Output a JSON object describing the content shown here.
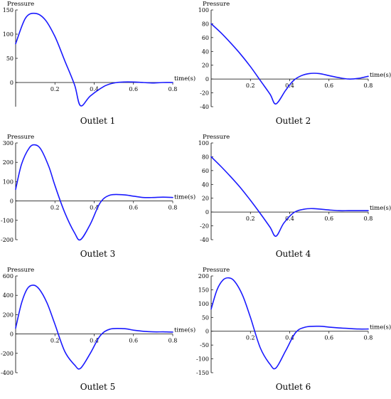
{
  "chart_data": [
    {
      "type": "line",
      "caption": "Outlet 1",
      "ylabel": "Pressure",
      "xlabel": "time(s)",
      "xlim": [
        0,
        0.8
      ],
      "ylim": [
        -50,
        150
      ],
      "xticks": [
        0.2,
        0.4,
        0.6,
        0.8
      ],
      "yticks": [
        0,
        50,
        100,
        150
      ],
      "x": [
        0,
        0.05,
        0.1,
        0.15,
        0.2,
        0.25,
        0.3,
        0.33,
        0.38,
        0.45,
        0.5,
        0.55,
        0.6,
        0.65,
        0.7,
        0.75,
        0.8
      ],
      "y": [
        80,
        133,
        143,
        130,
        95,
        45,
        -5,
        -48,
        -28,
        -8,
        -1,
        1,
        1,
        0,
        -1,
        0,
        0
      ]
    },
    {
      "type": "line",
      "caption": "Outlet 2",
      "ylabel": "Pressure",
      "xlabel": "time(s)",
      "xlim": [
        0,
        0.8
      ],
      "ylim": [
        -40,
        100
      ],
      "xticks": [
        0.2,
        0.4,
        0.6,
        0.8
      ],
      "yticks": [
        -40,
        -20,
        0,
        20,
        40,
        60,
        80,
        100
      ],
      "x": [
        0,
        0.05,
        0.1,
        0.15,
        0.2,
        0.25,
        0.3,
        0.33,
        0.38,
        0.42,
        0.46,
        0.5,
        0.55,
        0.6,
        0.65,
        0.7,
        0.75,
        0.8
      ],
      "y": [
        80,
        67,
        52,
        36,
        18,
        -2,
        -22,
        -36,
        -16,
        -2,
        5,
        8,
        8,
        5,
        2,
        0,
        1,
        4
      ]
    },
    {
      "type": "line",
      "caption": "Outlet 3",
      "ylabel": "Pressure",
      "xlabel": "time(s)",
      "xlim": [
        0,
        0.8
      ],
      "ylim": [
        -200,
        300
      ],
      "xticks": [
        0.2,
        0.4,
        0.6,
        0.8
      ],
      "yticks": [
        -200,
        -100,
        0,
        100,
        200,
        300
      ],
      "x": [
        0,
        0.03,
        0.07,
        0.1,
        0.13,
        0.17,
        0.2,
        0.25,
        0.3,
        0.33,
        0.38,
        0.43,
        0.48,
        0.55,
        0.6,
        0.65,
        0.7,
        0.75,
        0.8
      ],
      "y": [
        60,
        190,
        275,
        290,
        265,
        175,
        80,
        -60,
        -165,
        -200,
        -120,
        -10,
        30,
        32,
        25,
        18,
        18,
        20,
        18
      ]
    },
    {
      "type": "line",
      "caption": "Outlet 4",
      "ylabel": "Pressure",
      "xlabel": "time(s)",
      "xlim": [
        0,
        0.8
      ],
      "ylim": [
        -40,
        100
      ],
      "xticks": [
        0.2,
        0.4,
        0.6,
        0.8
      ],
      "yticks": [
        -40,
        -20,
        0,
        20,
        40,
        60,
        80,
        100
      ],
      "x": [
        0,
        0.05,
        0.1,
        0.15,
        0.2,
        0.25,
        0.3,
        0.33,
        0.37,
        0.42,
        0.47,
        0.52,
        0.6,
        0.65,
        0.7,
        0.75,
        0.8
      ],
      "y": [
        80,
        66,
        51,
        35,
        17,
        -2,
        -22,
        -35,
        -16,
        -1,
        4,
        5,
        3,
        2,
        2,
        2,
        2
      ]
    },
    {
      "type": "line",
      "caption": "Outlet 5",
      "ylabel": "Pressure",
      "xlabel": "time(s)",
      "xlim": [
        0,
        0.8
      ],
      "ylim": [
        -400,
        600
      ],
      "xticks": [
        0.2,
        0.4,
        0.6,
        0.8
      ],
      "yticks": [
        -400,
        -200,
        0,
        200,
        400,
        600
      ],
      "x": [
        0,
        0.03,
        0.06,
        0.09,
        0.12,
        0.16,
        0.2,
        0.25,
        0.3,
        0.33,
        0.38,
        0.43,
        0.48,
        0.55,
        0.6,
        0.65,
        0.7,
        0.75,
        0.8
      ],
      "y": [
        60,
        320,
        470,
        505,
        465,
        320,
        100,
        -180,
        -320,
        -355,
        -200,
        -20,
        50,
        55,
        40,
        28,
        22,
        22,
        20
      ]
    },
    {
      "type": "line",
      "caption": "Outlet 6",
      "ylabel": "Pressure",
      "xlabel": "time(s)",
      "xlim": [
        0,
        0.8
      ],
      "ylim": [
        -150,
        200
      ],
      "xticks": [
        0.2,
        0.4,
        0.6,
        0.8
      ],
      "yticks": [
        -150,
        -100,
        -50,
        0,
        50,
        100,
        150,
        200
      ],
      "x": [
        0,
        0.03,
        0.06,
        0.09,
        0.12,
        0.16,
        0.2,
        0.25,
        0.3,
        0.33,
        0.38,
        0.43,
        0.48,
        0.55,
        0.6,
        0.65,
        0.7,
        0.75,
        0.8
      ],
      "y": [
        80,
        150,
        185,
        193,
        180,
        130,
        50,
        -60,
        -120,
        -133,
        -70,
        -5,
        15,
        18,
        15,
        12,
        10,
        8,
        8
      ]
    }
  ],
  "style": {
    "curve_color": "#1a1aff",
    "axis_color": "#000000"
  }
}
